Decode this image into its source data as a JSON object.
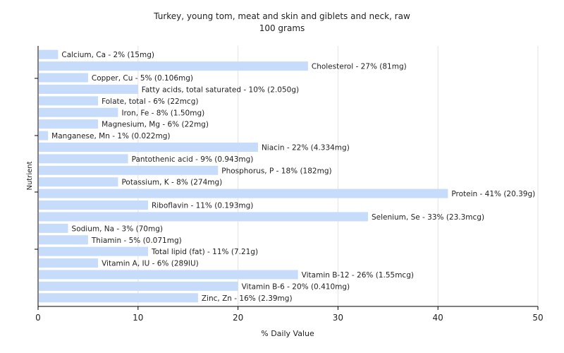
{
  "chart_data": {
    "type": "bar",
    "orientation": "horizontal",
    "title": "Turkey, young tom, meat and skin and giblets and neck, raw",
    "subtitle": "100 grams",
    "xlabel": "% Daily Value",
    "ylabel": "Nutrient",
    "xlim": [
      0,
      50
    ],
    "xticks": [
      "0",
      "10",
      "20",
      "30",
      "40",
      "50"
    ],
    "grid": true,
    "bar_color": "#c6dcfa",
    "categories": [
      "Calcium, Ca",
      "Cholesterol",
      "Copper, Cu",
      "Fatty acids, total saturated",
      "Folate, total",
      "Iron, Fe",
      "Magnesium, Mg",
      "Manganese, Mn",
      "Niacin",
      "Pantothenic acid",
      "Phosphorus, P",
      "Potassium, K",
      "Protein",
      "Riboflavin",
      "Selenium, Se",
      "Sodium, Na",
      "Thiamin",
      "Total lipid (fat)",
      "Vitamin A, IU",
      "Vitamin B-12",
      "Vitamin B-6",
      "Zinc, Zn"
    ],
    "values": [
      2,
      27,
      5,
      10,
      6,
      8,
      6,
      1,
      22,
      9,
      18,
      8,
      41,
      11,
      33,
      3,
      5,
      11,
      6,
      26,
      20,
      16
    ],
    "labels": [
      "Calcium, Ca - 2% (15mg)",
      "Cholesterol - 27% (81mg)",
      "Copper, Cu - 5% (0.106mg)",
      "Fatty acids, total saturated - 10% (2.050g)",
      "Folate, total - 6% (22mcg)",
      "Iron, Fe - 8% (1.50mg)",
      "Magnesium, Mg - 6% (22mg)",
      "Manganese, Mn - 1% (0.022mg)",
      "Niacin - 22% (4.334mg)",
      "Pantothenic acid - 9% (0.943mg)",
      "Phosphorus, P - 18% (182mg)",
      "Potassium, K - 8% (274mg)",
      "Protein - 41% (20.39g)",
      "Riboflavin - 11% (0.193mg)",
      "Selenium, Se - 33% (23.3mcg)",
      "Sodium, Na - 3% (70mg)",
      "Thiamin - 5% (0.071mg)",
      "Total lipid (fat) - 11% (7.21g)",
      "Vitamin A, IU - 6% (289IU)",
      "Vitamin B-12 - 26% (1.55mcg)",
      "Vitamin B-6 - 20% (0.410mg)",
      "Zinc, Zn - 16% (2.39mg)"
    ]
  }
}
